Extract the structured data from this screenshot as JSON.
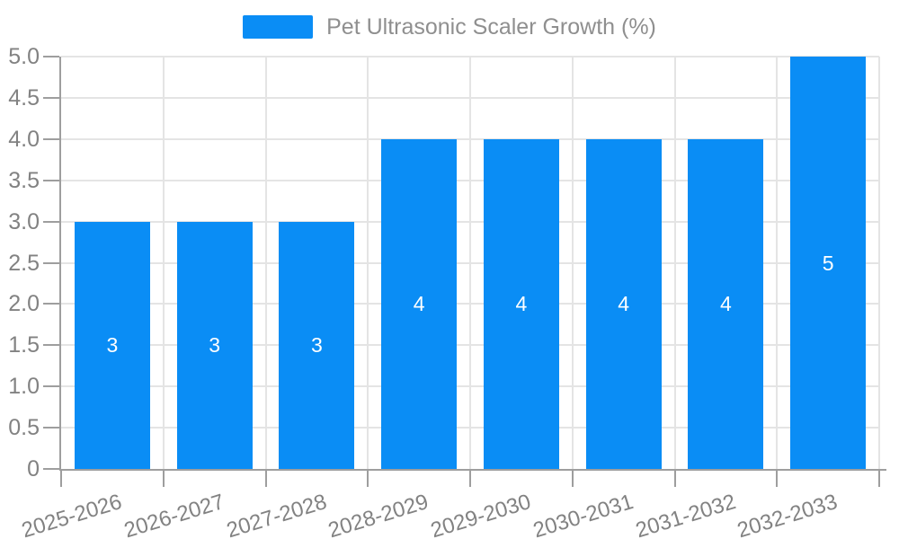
{
  "legend": {
    "label": "Pet Ultrasonic Scaler Growth (%)"
  },
  "chart_data": {
    "type": "bar",
    "title": "Pet Ultrasonic Scaler Growth (%)",
    "categories": [
      "2025-2026",
      "2026-2027",
      "2027-2028",
      "2028-2029",
      "2029-2030",
      "2030-2031",
      "2031-2032",
      "2032-2033"
    ],
    "values": [
      3,
      3,
      3,
      4,
      4,
      4,
      4,
      5
    ],
    "bar_labels": [
      "3",
      "3",
      "3",
      "4",
      "4",
      "4",
      "4",
      "5"
    ],
    "xlabel": "",
    "ylabel": "",
    "ylim": [
      0,
      5
    ],
    "ytick_step": 0.5,
    "ytick_labels": [
      "0",
      "0.5",
      "1.0",
      "1.5",
      "2.0",
      "2.5",
      "3.0",
      "3.5",
      "4.0",
      "4.5",
      "5.0"
    ],
    "grid": true,
    "legend_position": "top-center",
    "colors": {
      "bar": "#0a8df5",
      "bar_label": "#ffffff",
      "axis": "#9e9e9e",
      "gridline": "#e4e4e4",
      "tick_label": "#828282",
      "legend_text": "#8f8f8f",
      "background": "#ffffff"
    }
  }
}
